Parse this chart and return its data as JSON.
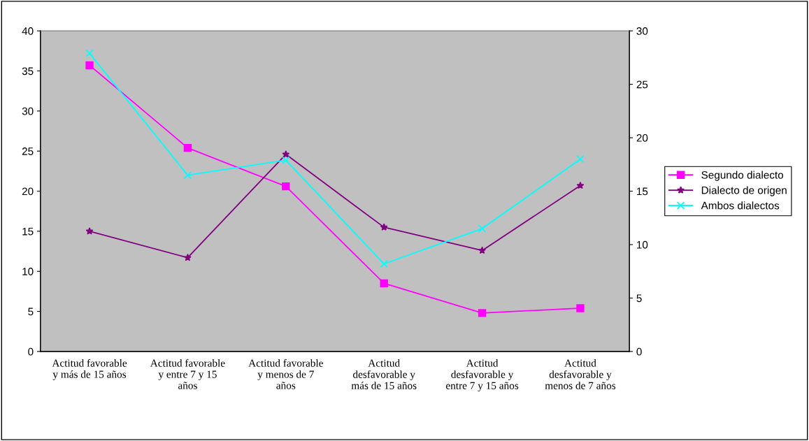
{
  "chart_data": {
    "type": "line",
    "categories": [
      "Actitud favorable\ny más de 15 años",
      "Actitud favorable\ny entre 7 y 15\naños",
      "Actitud favorable\ny menos de 7\naños",
      "Actitud\ndesfavorable y\nmás de 15 años",
      "Actitud\ndesfavorable y\nentre 7 y 15 años",
      "Actitud\ndesfavorable y\nmenos de 7 años"
    ],
    "series": [
      {
        "name": "Segundo dialecto",
        "color": "#ff00ff",
        "marker": "square",
        "values": [
          35.7,
          25.4,
          20.6,
          8.5,
          4.8,
          5.4
        ]
      },
      {
        "name": "Dialecto de origen",
        "color": "#800080",
        "marker": "star",
        "values": [
          15.0,
          11.7,
          24.6,
          15.5,
          12.6,
          20.7
        ]
      },
      {
        "name": "Ambos dialectos",
        "color": "#00ffff",
        "marker": "cross",
        "axis": "y2",
        "values": [
          27.9,
          16.5,
          17.9,
          8.2,
          11.5,
          18.0
        ]
      }
    ],
    "ylim": [
      0,
      40
    ],
    "yticks": [
      0,
      5,
      10,
      15,
      20,
      25,
      30,
      35,
      40
    ],
    "y2lim": [
      0,
      30
    ],
    "y2ticks": [
      0,
      5,
      10,
      15,
      20,
      25,
      30
    ],
    "grid": false,
    "legend": "right"
  }
}
